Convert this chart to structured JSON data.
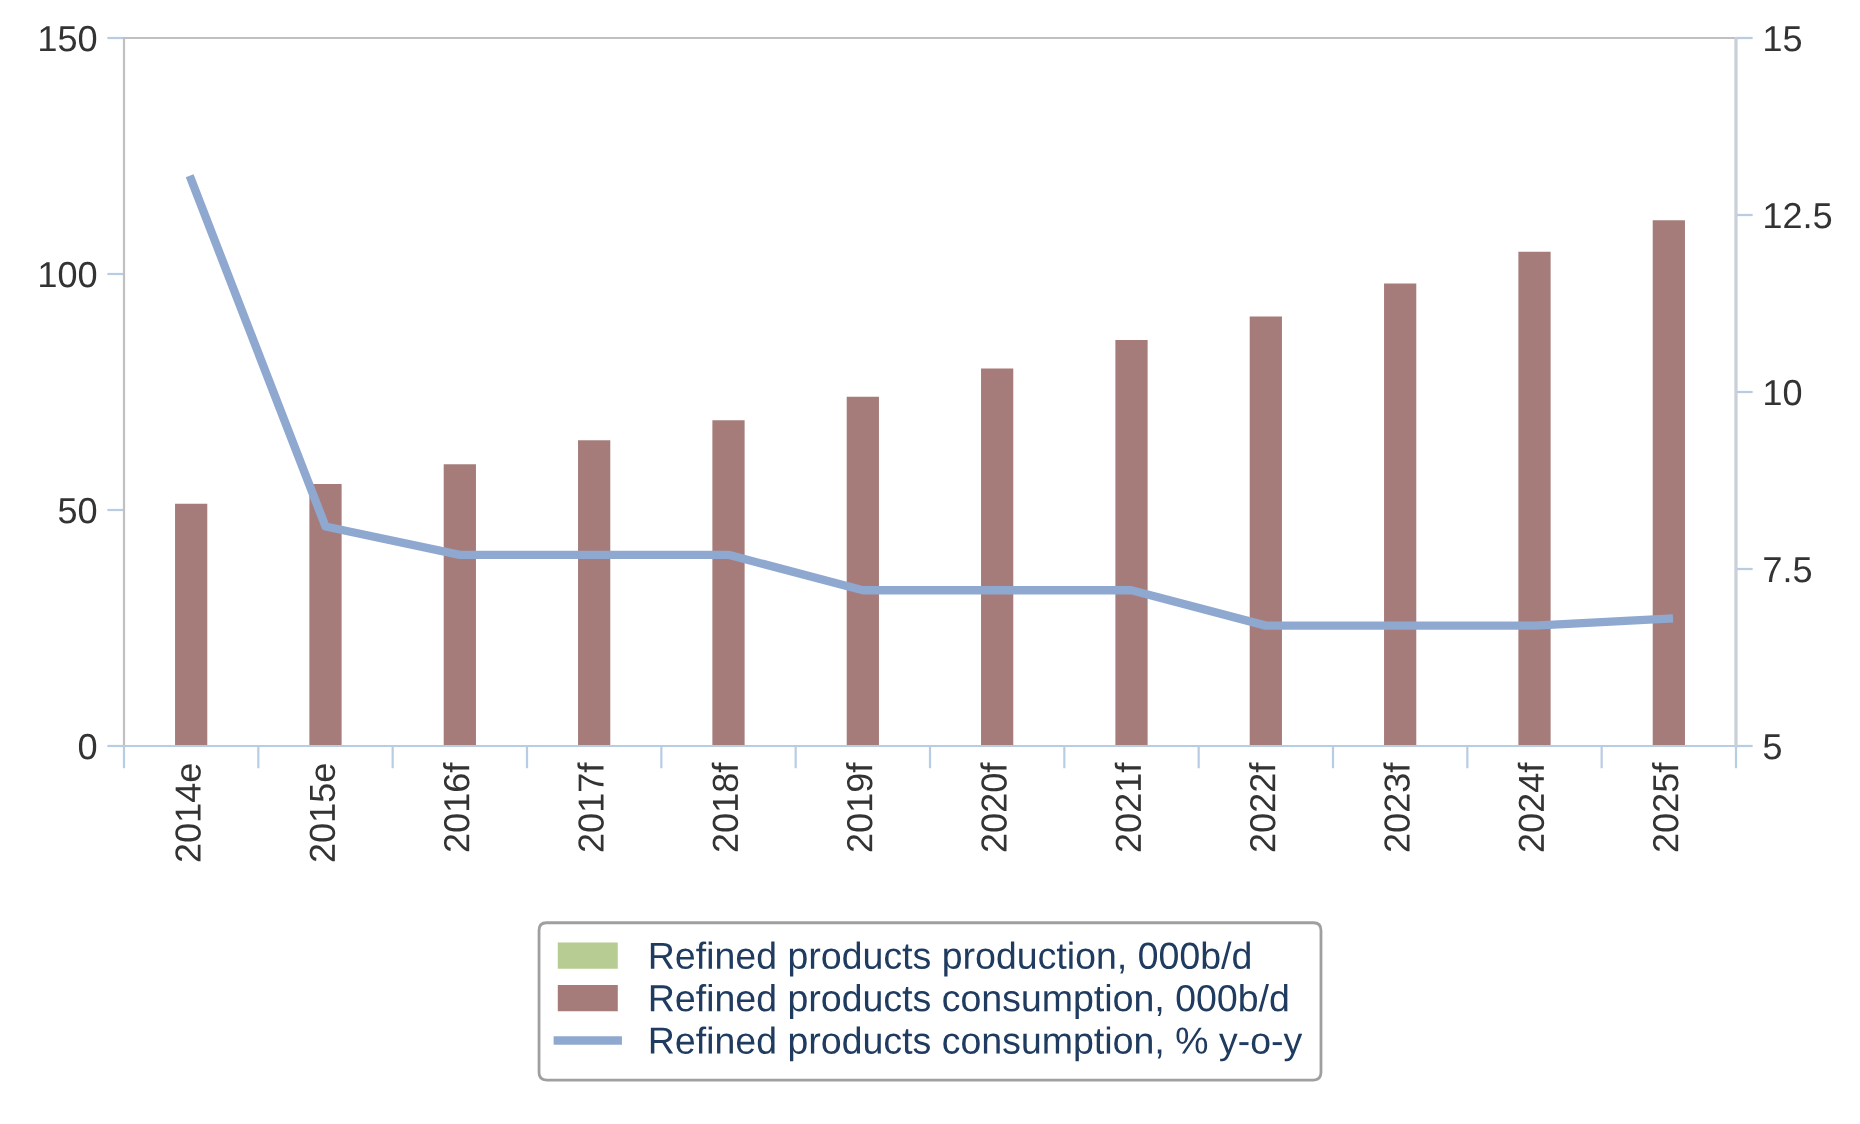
{
  "chart_data": {
    "type": "bar",
    "categories": [
      "2014e",
      "2015e",
      "2016f",
      "2017f",
      "2018f",
      "2019f",
      "2020f",
      "2021f",
      "2022f",
      "2023f",
      "2024f",
      "2025f"
    ],
    "series": [
      {
        "name": "Refined products production, 000b/d",
        "color": "#b6cc92",
        "values": [
          0,
          0,
          0,
          0,
          0,
          0,
          0,
          0,
          0,
          0,
          0,
          0
        ]
      },
      {
        "name": "Refined products consumption, 000b/d",
        "color": "#a57c7a",
        "values": [
          51.3,
          55.5,
          59.7,
          64.8,
          69,
          74,
          80,
          86,
          91,
          98,
          104.7,
          111.4
        ]
      },
      {
        "name": "Refined products consumption, % y-o-y",
        "type": "line",
        "axis": "y2",
        "color": "#8fa8d0",
        "values": [
          13,
          8.1,
          7.7,
          7.7,
          7.7,
          7.2,
          7.2,
          7.2,
          6.7,
          6.7,
          6.7,
          6.8
        ]
      }
    ],
    "ylim": [
      0,
      150
    ],
    "yticks": [
      0,
      50,
      100,
      150
    ],
    "y2lim": [
      5,
      15
    ],
    "y2ticks": [
      5,
      7.5,
      10,
      12.5,
      15
    ],
    "grid": false,
    "legend": "bottom"
  }
}
